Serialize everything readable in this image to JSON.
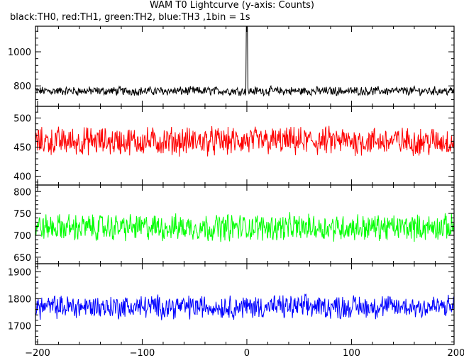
{
  "title": "WAM T0 Lightcurve (y-axis: Counts)",
  "subtitle": "black:TH0, red:TH1, green:TH2, blue:TH3 ,1bin = 1s",
  "chart_data": {
    "type": "line",
    "xlim": [
      -202,
      198
    ],
    "x_ticks": [
      -200,
      -100,
      0,
      100,
      200
    ],
    "x_tick_labels": [
      "−200",
      "−100",
      "0",
      "100",
      "200"
    ],
    "panels": [
      {
        "series": "TH0",
        "color": "#000000",
        "ylim": [
          680,
          1150
        ],
        "y_ticks": [
          800,
          1000
        ],
        "y_tick_labels": [
          "800",
          "1000"
        ],
        "baseline_mean": 770,
        "noise_amplitude": 30,
        "features": [
          {
            "x": 0,
            "value": 1150
          }
        ]
      },
      {
        "series": "TH1",
        "color": "#ff0000",
        "ylim": [
          385,
          520
        ],
        "y_ticks": [
          400,
          450,
          500
        ],
        "y_tick_labels": [
          "400",
          "450",
          "500"
        ],
        "baseline_mean": 460,
        "noise_amplitude": 28
      },
      {
        "series": "TH2",
        "color": "#00ff00",
        "ylim": [
          635,
          815
        ],
        "y_ticks": [
          650,
          700,
          750,
          800
        ],
        "y_tick_labels": [
          "650",
          "700",
          "750",
          "800"
        ],
        "baseline_mean": 718,
        "noise_amplitude": 35
      },
      {
        "series": "TH3",
        "color": "#0000ff",
        "ylim": [
          1630,
          1930
        ],
        "y_ticks": [
          1700,
          1800,
          1900
        ],
        "y_tick_labels": [
          "1700",
          "1800",
          "1900"
        ],
        "baseline_mean": 1770,
        "noise_amplitude": 50
      }
    ]
  }
}
